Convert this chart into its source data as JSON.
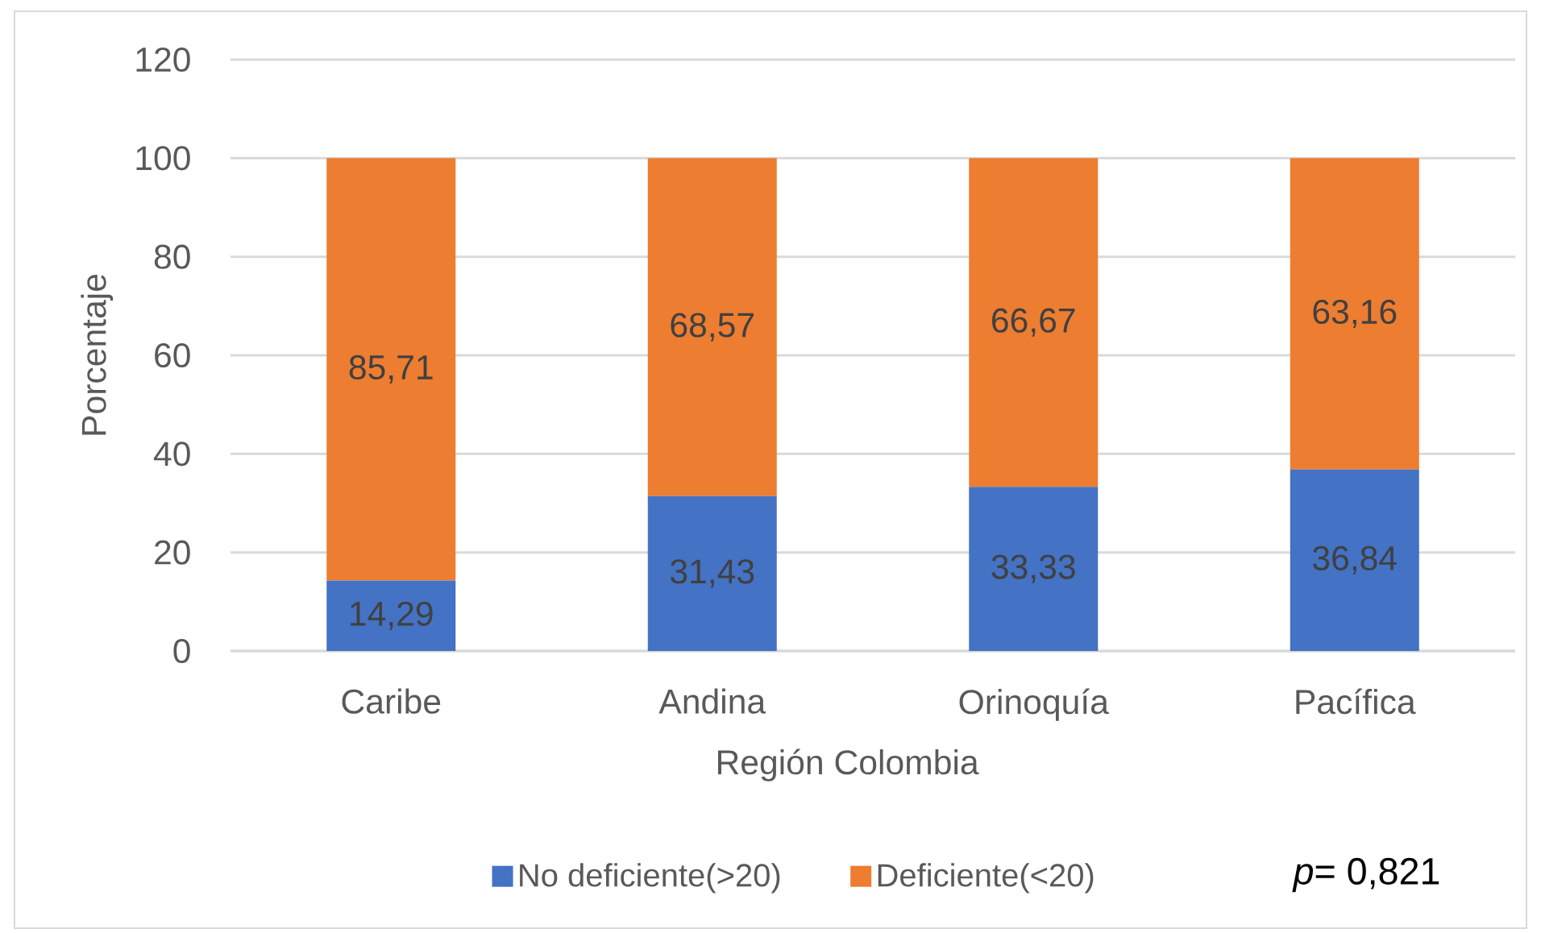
{
  "chart_data": {
    "type": "bar",
    "stacked": true,
    "xlabel": "Región Colombia",
    "ylabel": "Porcentaje",
    "categories": [
      "Caribe",
      "Andina",
      "Orinoquía",
      "Pacífica"
    ],
    "series": [
      {
        "name": "No deficiente(>20)",
        "color": "#4472c4",
        "values": [
          14.29,
          31.43,
          33.33,
          36.84
        ],
        "value_labels": [
          "14,29",
          "31,43",
          "33,33",
          "36,84"
        ]
      },
      {
        "name": "Deficiente(<20)",
        "color": "#ed7d31",
        "values": [
          85.71,
          68.57,
          66.67,
          63.16
        ],
        "value_labels": [
          "85,71",
          "68,57",
          "66,67",
          "63,16"
        ]
      }
    ],
    "ylim": [
      0,
      120
    ],
    "yticks": [
      0,
      20,
      40,
      60,
      80,
      100,
      120
    ],
    "grid": "y",
    "legend": "bottom",
    "annotations": [
      "*p*= 0,821"
    ]
  }
}
